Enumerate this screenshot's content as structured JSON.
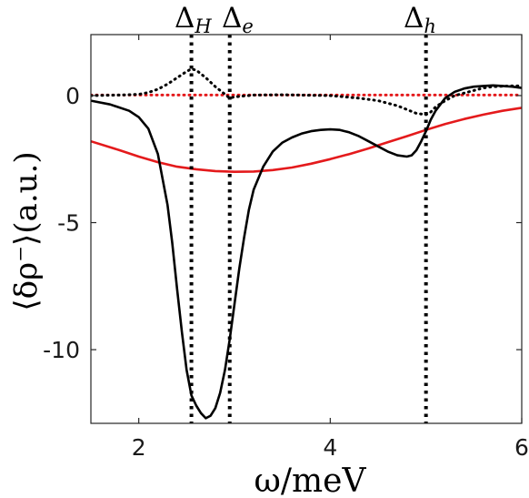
{
  "chart_data": {
    "type": "line",
    "title": "",
    "xlabel": "ω/meV",
    "ylabel": "⟨δρ⁻⟩(a.u.)",
    "xlim": [
      1.5,
      6.0
    ],
    "ylim": [
      -12.9,
      2.4
    ],
    "grid": false,
    "xticks": [
      2,
      4,
      6
    ],
    "xtick_labels": [
      "2",
      "4",
      "6"
    ],
    "yticks": [
      0,
      -5,
      -10
    ],
    "ytick_labels": [
      "0",
      "-5",
      "-10"
    ],
    "annotations": [
      {
        "symbol": "Δ",
        "sub": "H",
        "x": 2.55
      },
      {
        "symbol": "Δ",
        "sub": "e",
        "x": 2.95
      },
      {
        "symbol": "Δ",
        "sub": "h",
        "x": 5.0
      }
    ],
    "series": [
      {
        "color": "#000000",
        "style": "solid",
        "x": [
          1.5,
          1.7,
          1.9,
          2.0,
          2.1,
          2.2,
          2.3,
          2.35,
          2.4,
          2.45,
          2.5,
          2.55,
          2.6,
          2.65,
          2.7,
          2.75,
          2.8,
          2.85,
          2.9,
          2.95,
          3.0,
          3.05,
          3.1,
          3.15,
          3.2,
          3.3,
          3.4,
          3.5,
          3.6,
          3.7,
          3.8,
          3.9,
          4.0,
          4.1,
          4.2,
          4.3,
          4.4,
          4.5,
          4.6,
          4.7,
          4.8,
          4.85,
          4.9,
          4.95,
          5.0,
          5.05,
          5.1,
          5.2,
          5.3,
          5.4,
          5.5,
          5.6,
          5.7,
          5.8,
          5.9,
          6.0
        ],
        "y": [
          -0.2,
          -0.35,
          -0.6,
          -0.85,
          -1.3,
          -2.3,
          -4.3,
          -5.8,
          -7.6,
          -9.3,
          -10.8,
          -11.8,
          -12.2,
          -12.5,
          -12.7,
          -12.6,
          -12.3,
          -11.7,
          -10.8,
          -9.6,
          -8.2,
          -6.8,
          -5.6,
          -4.5,
          -3.7,
          -2.8,
          -2.2,
          -1.85,
          -1.65,
          -1.5,
          -1.4,
          -1.35,
          -1.33,
          -1.35,
          -1.45,
          -1.6,
          -1.8,
          -2.0,
          -2.2,
          -2.35,
          -2.4,
          -2.35,
          -2.15,
          -1.8,
          -1.4,
          -0.95,
          -0.6,
          -0.1,
          0.15,
          0.28,
          0.35,
          0.38,
          0.4,
          0.38,
          0.35,
          0.3
        ]
      },
      {
        "color": "#000000",
        "style": "dotted",
        "x": [
          1.5,
          1.8,
          2.0,
          2.1,
          2.2,
          2.3,
          2.4,
          2.5,
          2.55,
          2.6,
          2.7,
          2.8,
          2.9,
          2.95,
          3.0,
          3.2,
          3.5,
          4.0,
          4.3,
          4.5,
          4.7,
          4.8,
          4.9,
          5.0,
          5.05,
          5.1,
          5.2,
          5.3,
          5.4,
          5.5,
          5.6,
          5.7,
          5.8,
          5.9,
          6.0
        ],
        "y": [
          0.0,
          0.02,
          0.05,
          0.12,
          0.25,
          0.45,
          0.7,
          0.95,
          1.05,
          1.0,
          0.7,
          0.35,
          0.05,
          -0.1,
          -0.05,
          0.02,
          0.03,
          0.0,
          -0.1,
          -0.2,
          -0.4,
          -0.55,
          -0.7,
          -0.75,
          -0.65,
          -0.45,
          -0.2,
          0.0,
          0.1,
          0.2,
          0.3,
          0.35,
          0.37,
          0.38,
          0.38
        ]
      },
      {
        "color": "#e41a1c",
        "style": "solid",
        "x": [
          1.5,
          1.8,
          2.0,
          2.2,
          2.4,
          2.6,
          2.8,
          3.0,
          3.2,
          3.4,
          3.6,
          3.8,
          4.0,
          4.2,
          4.4,
          4.6,
          4.8,
          5.0,
          5.2,
          5.4,
          5.6,
          5.8,
          6.0
        ],
        "y": [
          -1.8,
          -2.15,
          -2.4,
          -2.62,
          -2.8,
          -2.9,
          -2.97,
          -3.0,
          -2.99,
          -2.93,
          -2.83,
          -2.68,
          -2.5,
          -2.3,
          -2.08,
          -1.84,
          -1.6,
          -1.35,
          -1.12,
          -0.92,
          -0.75,
          -0.6,
          -0.48
        ]
      },
      {
        "color": "#e41a1c",
        "style": "dotted",
        "x": [
          1.5,
          6.0
        ],
        "y": [
          0.02,
          0.02
        ]
      }
    ]
  }
}
